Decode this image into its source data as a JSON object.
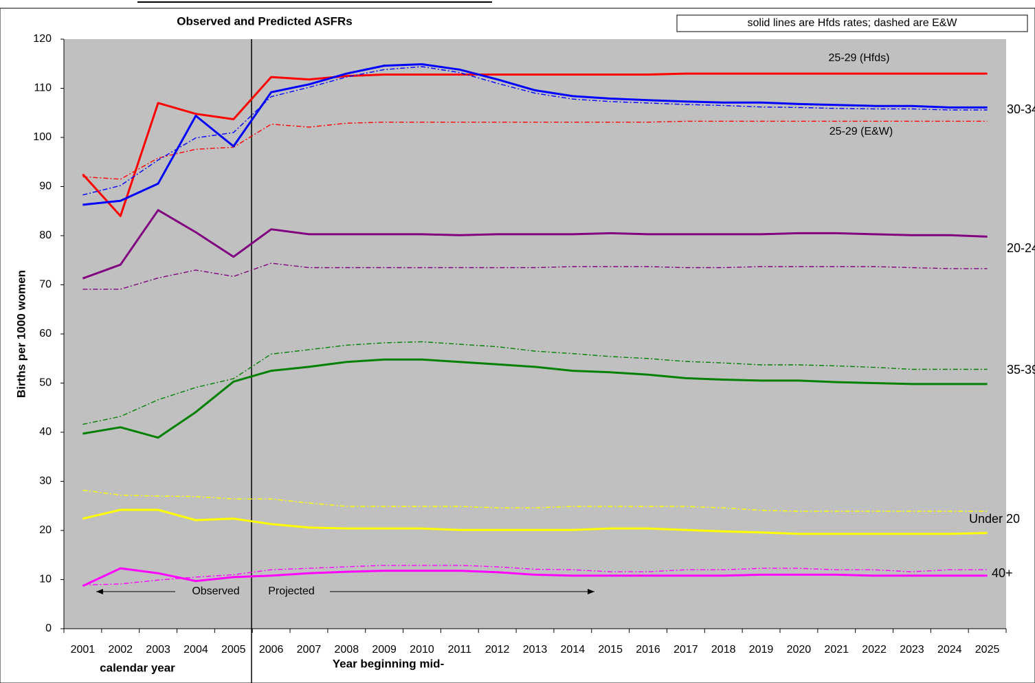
{
  "chart_data": {
    "type": "line",
    "title": "Observed and Predicted ASFRs",
    "ylabel": "Births per 1000 women",
    "xlabel": "Year beginning mid-",
    "xlabel_observed": "calendar year",
    "note": "solid lines are Hfds rates; dashed are E&W",
    "observed_label": "Observed",
    "projected_label": "Projected",
    "categories": [
      "2001",
      "2002",
      "2003",
      "2004",
      "2005",
      "2006",
      "2007",
      "2008",
      "2009",
      "2010",
      "2011",
      "2012",
      "2013",
      "2014",
      "2015",
      "2016",
      "2017",
      "2018",
      "2019",
      "2020",
      "2021",
      "2022",
      "2023",
      "2024",
      "2025"
    ],
    "ylim": [
      0,
      120
    ],
    "yticks": [
      0,
      10,
      20,
      30,
      40,
      50,
      60,
      70,
      80,
      90,
      100,
      110,
      120
    ],
    "series": [
      {
        "name": "25-29 (Hfds)",
        "color": "#ff0000",
        "style": "solid",
        "values": [
          92.5,
          84,
          107,
          104.8,
          103.7,
          112.3,
          111.8,
          112.5,
          112.8,
          112.8,
          112.8,
          112.8,
          112.8,
          112.8,
          112.8,
          112.8,
          113,
          113,
          113,
          113,
          113,
          113,
          113,
          113,
          113
        ]
      },
      {
        "name": "25-29 (E&W)",
        "color": "#ff0000",
        "style": "dashed",
        "values": [
          92,
          91.5,
          95.8,
          97.6,
          98,
          102.7,
          102.1,
          102.9,
          103.1,
          103.1,
          103.1,
          103.1,
          103.1,
          103.1,
          103.1,
          103.1,
          103.3,
          103.3,
          103.3,
          103.3,
          103.3,
          103.3,
          103.3,
          103.3,
          103.3
        ]
      },
      {
        "name": "30-34",
        "color": "#0000ff",
        "style": "solid",
        "values": [
          86.3,
          87.1,
          90.6,
          104.4,
          98.2,
          109.2,
          110.8,
          113,
          114.6,
          114.9,
          113.8,
          111.8,
          109.6,
          108.4,
          107.9,
          107.6,
          107.3,
          107.1,
          107.1,
          106.8,
          106.6,
          106.4,
          106.4,
          106.1,
          106.1
        ]
      },
      {
        "color": "#0000ff",
        "style": "dashed",
        "values": [
          88.3,
          90.2,
          95.4,
          99.9,
          101,
          108.3,
          110.2,
          112.3,
          113.8,
          114.4,
          113.2,
          111,
          109,
          107.8,
          107.3,
          107,
          106.7,
          106.5,
          106.2,
          106.1,
          105.9,
          105.8,
          105.8,
          105.6,
          105.6
        ]
      },
      {
        "name": "20-24",
        "color": "#800080",
        "style": "solid",
        "values": [
          71.3,
          74.1,
          85.2,
          80.7,
          75.7,
          81.3,
          80.3,
          80.3,
          80.3,
          80.3,
          80.1,
          80.3,
          80.3,
          80.3,
          80.5,
          80.3,
          80.3,
          80.3,
          80.3,
          80.5,
          80.5,
          80.3,
          80.1,
          80.1,
          79.8
        ]
      },
      {
        "color": "#800080",
        "style": "dashed",
        "values": [
          69.1,
          69.1,
          71.4,
          73,
          71.7,
          74.4,
          73.5,
          73.5,
          73.5,
          73.5,
          73.5,
          73.5,
          73.5,
          73.7,
          73.7,
          73.7,
          73.5,
          73.5,
          73.7,
          73.7,
          73.7,
          73.7,
          73.5,
          73.3,
          73.3
        ]
      },
      {
        "name": "35-39",
        "color": "#008000",
        "style": "solid",
        "values": [
          39.7,
          41,
          38.9,
          44.1,
          50.3,
          52.5,
          53.3,
          54.3,
          54.8,
          54.8,
          54.3,
          53.8,
          53.3,
          52.5,
          52.2,
          51.7,
          51,
          50.7,
          50.5,
          50.5,
          50.2,
          50,
          49.8,
          49.8,
          49.8
        ]
      },
      {
        "color": "#008000",
        "style": "dashed",
        "values": [
          41.6,
          43.2,
          46.6,
          49.1,
          50.9,
          55.9,
          56.8,
          57.7,
          58.2,
          58.4,
          57.9,
          57.4,
          56.5,
          56,
          55.4,
          55,
          54.4,
          54.1,
          53.7,
          53.7,
          53.5,
          53.2,
          52.8,
          52.8,
          52.8
        ]
      },
      {
        "name": "Under 20",
        "color": "#ffff00",
        "style": "solid",
        "values": [
          22.4,
          24.2,
          24.2,
          22.1,
          22.4,
          21.3,
          20.6,
          20.4,
          20.4,
          20.4,
          20.1,
          20.1,
          20.1,
          20.1,
          20.4,
          20.4,
          20.1,
          19.8,
          19.6,
          19.3,
          19.3,
          19.3,
          19.3,
          19.3,
          19.5
        ]
      },
      {
        "color": "#ffff00",
        "style": "dashed",
        "values": [
          28.2,
          27.2,
          27,
          26.9,
          26.4,
          26.4,
          25.6,
          24.9,
          24.9,
          24.9,
          24.9,
          24.6,
          24.6,
          24.9,
          24.9,
          24.9,
          24.9,
          24.6,
          24.1,
          23.9,
          23.9,
          23.9,
          23.9,
          23.9,
          23.9
        ]
      },
      {
        "name": "40+",
        "color": "#ff00ff",
        "style": "solid",
        "values": [
          8.7,
          12.3,
          11.3,
          9.7,
          10.5,
          10.8,
          11.3,
          11.6,
          11.8,
          11.8,
          11.8,
          11.5,
          11,
          10.8,
          10.8,
          10.8,
          10.8,
          10.8,
          11,
          11,
          11,
          10.8,
          10.8,
          10.8,
          10.8
        ]
      },
      {
        "color": "#ff00ff",
        "style": "dashed",
        "values": [
          8.9,
          9.1,
          9.9,
          10.5,
          11,
          12,
          12.3,
          12.6,
          12.9,
          12.9,
          12.9,
          12.6,
          12.1,
          12,
          11.6,
          11.6,
          12,
          12,
          12.3,
          12.3,
          12,
          12,
          11.6,
          12,
          12
        ]
      }
    ]
  }
}
